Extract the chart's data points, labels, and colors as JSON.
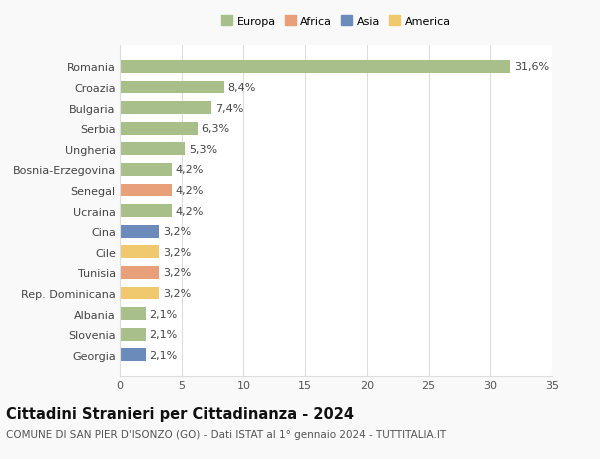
{
  "categories": [
    "Georgia",
    "Slovenia",
    "Albania",
    "Rep. Dominicana",
    "Tunisia",
    "Cile",
    "Cina",
    "Ucraina",
    "Senegal",
    "Bosnia-Erzegovina",
    "Ungheria",
    "Serbia",
    "Bulgaria",
    "Croazia",
    "Romania"
  ],
  "values": [
    2.1,
    2.1,
    2.1,
    3.2,
    3.2,
    3.2,
    3.2,
    4.2,
    4.2,
    4.2,
    5.3,
    6.3,
    7.4,
    8.4,
    31.6
  ],
  "labels": [
    "2,1%",
    "2,1%",
    "2,1%",
    "3,2%",
    "3,2%",
    "3,2%",
    "3,2%",
    "4,2%",
    "4,2%",
    "4,2%",
    "5,3%",
    "6,3%",
    "7,4%",
    "8,4%",
    "31,6%"
  ],
  "colors": [
    "#6b8cba",
    "#a8bf8a",
    "#a8bf8a",
    "#f0c96e",
    "#e8a07a",
    "#f0c96e",
    "#6b8cba",
    "#a8bf8a",
    "#e8a07a",
    "#a8bf8a",
    "#a8bf8a",
    "#a8bf8a",
    "#a8bf8a",
    "#a8bf8a",
    "#a8bf8a"
  ],
  "legend_labels": [
    "Europa",
    "Africa",
    "Asia",
    "America"
  ],
  "legend_colors": [
    "#a8bf8a",
    "#e8a07a",
    "#6b8cba",
    "#f0c96e"
  ],
  "title": "Cittadini Stranieri per Cittadinanza - 2024",
  "subtitle": "COMUNE DI SAN PIER D'ISONZO (GO) - Dati ISTAT al 1° gennaio 2024 - TUTTITALIA.IT",
  "xlim": [
    0,
    35
  ],
  "xticks": [
    0,
    5,
    10,
    15,
    20,
    25,
    30,
    35
  ],
  "background_color": "#f9f9f9",
  "bar_background": "#ffffff",
  "grid_color": "#dddddd",
  "label_fontsize": 8.0,
  "tick_fontsize": 8.0,
  "title_fontsize": 10.5,
  "subtitle_fontsize": 7.5
}
